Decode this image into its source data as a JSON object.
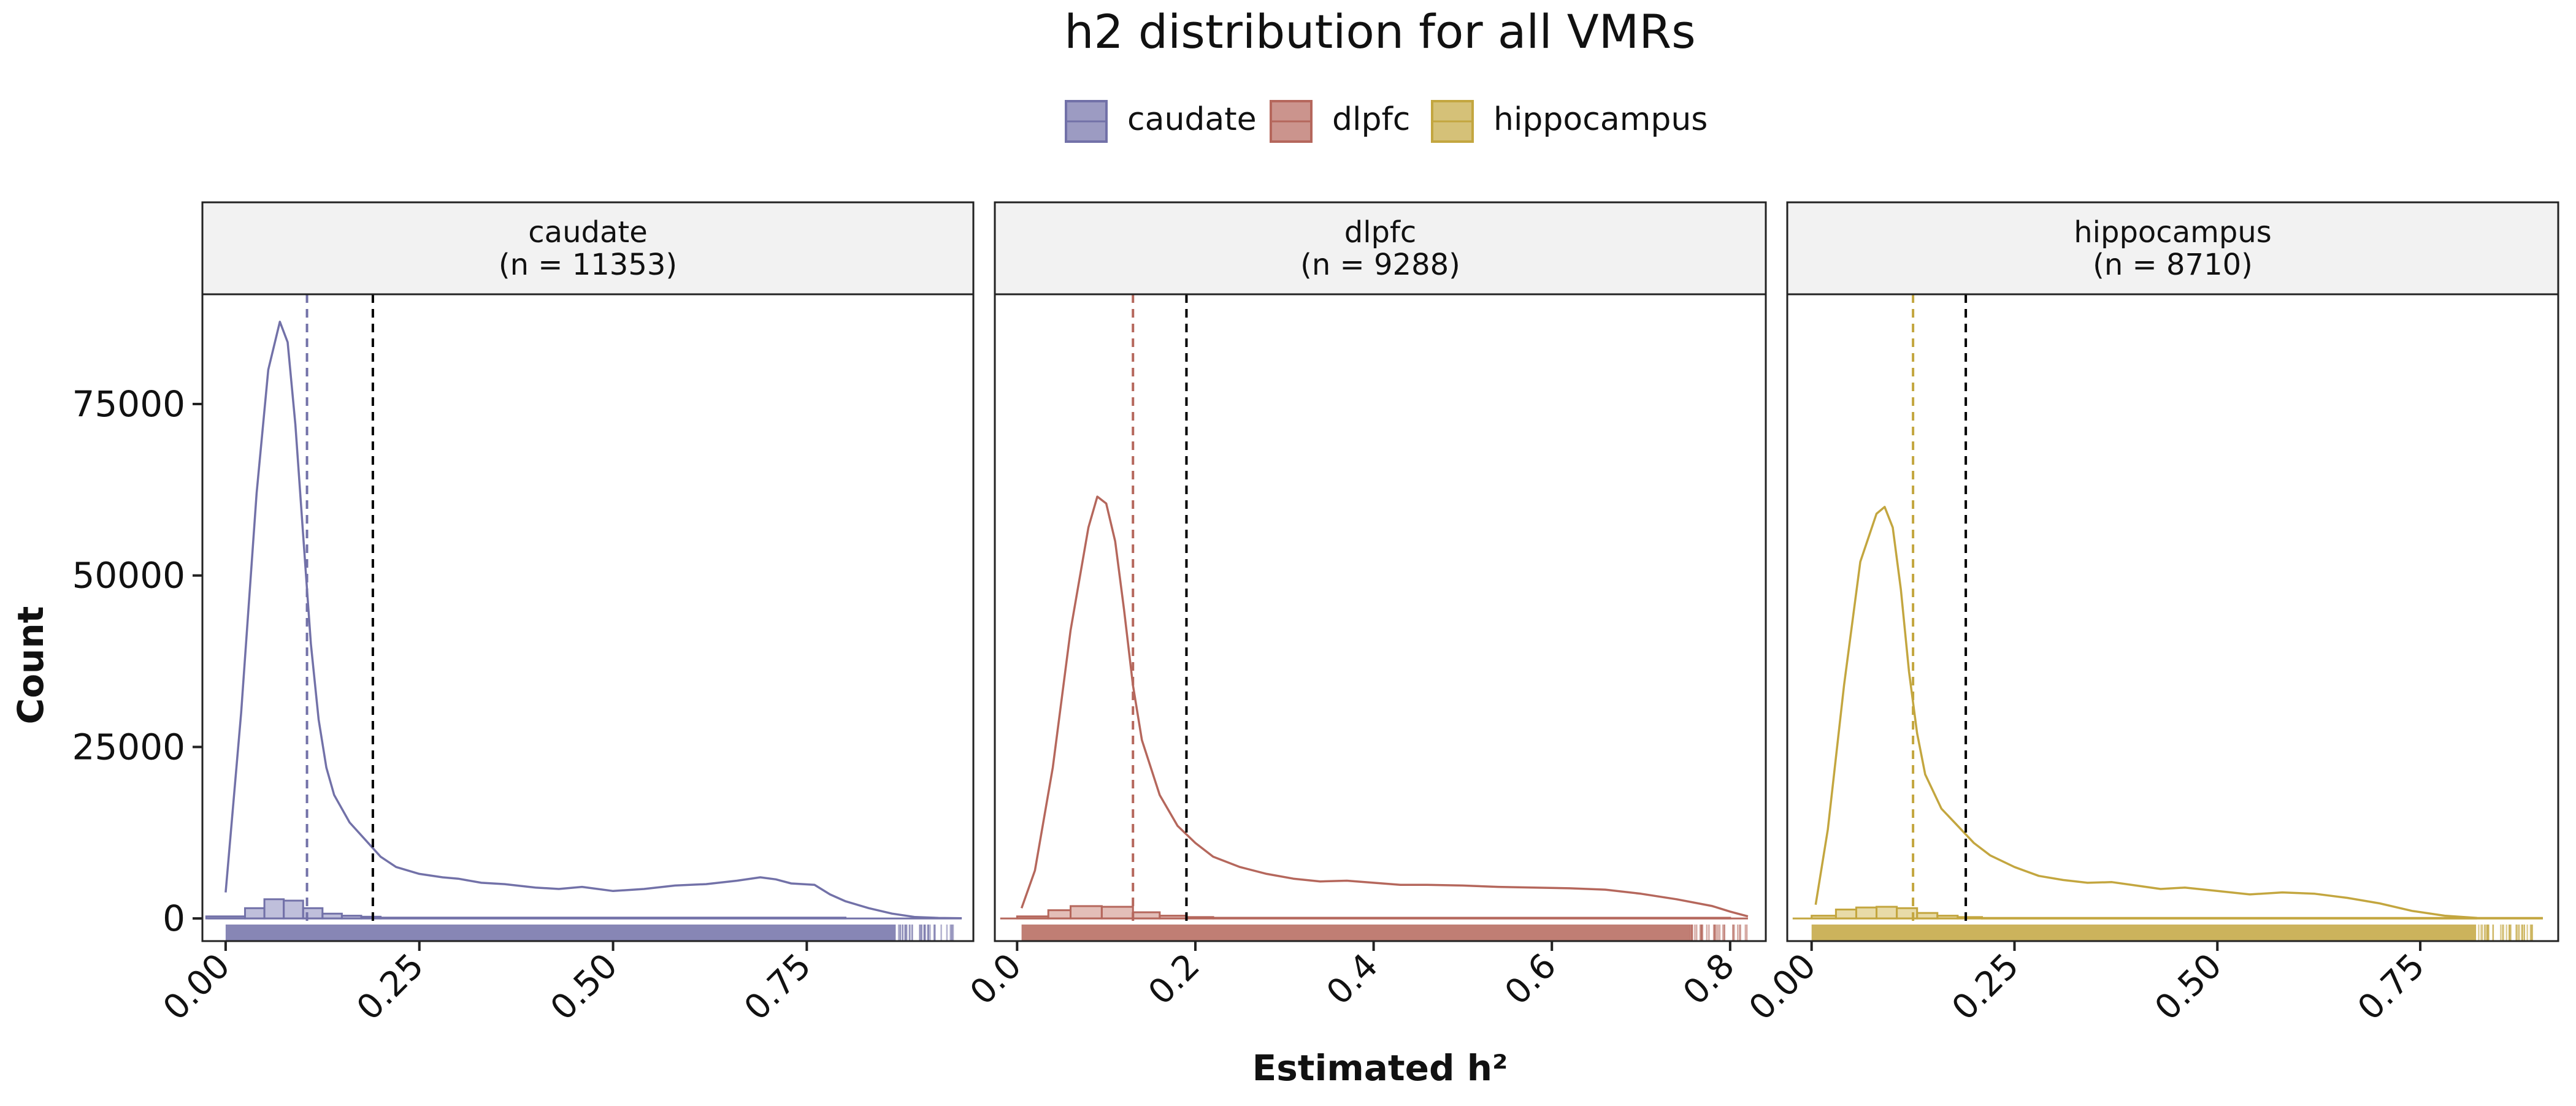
{
  "chart_data": {
    "type": "area",
    "title": "h2 distribution for all VMRs",
    "xlabel": "Estimated h²",
    "ylabel": "Count",
    "ylim": [
      -3300,
      91000
    ],
    "yticks": [
      0,
      25000,
      50000,
      75000
    ],
    "ytick_labels": [
      "0",
      "25000",
      "50000",
      "75000"
    ],
    "grid": false,
    "legend": {
      "placement": "top",
      "entries": [
        {
          "label": "caudate",
          "color": "#7271a8"
        },
        {
          "label": "dlpfc",
          "color": "#b5675c"
        },
        {
          "label": "hippocampus",
          "color": "#c3a63f"
        }
      ]
    },
    "reference_line": {
      "x": 0.19,
      "color": "#000000"
    },
    "panels": [
      {
        "name": "caudate",
        "strip_label": "caudate",
        "strip_n": "(n = 11353)",
        "color": "#7271a8",
        "fill": "#9d9cc8",
        "xlim": [
          -0.03,
          0.965
        ],
        "xticks": [
          0,
          0.25,
          0.5,
          0.75
        ],
        "xtick_labels": [
          "0.00",
          "0.25",
          "0.50",
          "0.75"
        ],
        "median_line": 0.105,
        "density_curve": {
          "x": [
            0.0,
            0.02,
            0.04,
            0.055,
            0.07,
            0.08,
            0.09,
            0.1,
            0.11,
            0.12,
            0.13,
            0.14,
            0.16,
            0.18,
            0.2,
            0.22,
            0.25,
            0.28,
            0.3,
            0.33,
            0.36,
            0.4,
            0.43,
            0.46,
            0.5,
            0.54,
            0.58,
            0.62,
            0.66,
            0.69,
            0.71,
            0.73,
            0.76,
            0.78,
            0.8,
            0.83,
            0.86,
            0.89,
            0.92,
            0.95
          ],
          "y": [
            3800,
            30000,
            62000,
            80000,
            87000,
            84000,
            72000,
            56000,
            40000,
            29000,
            22000,
            18000,
            14000,
            11500,
            9000,
            7500,
            6500,
            6000,
            5800,
            5200,
            5000,
            4500,
            4300,
            4600,
            4000,
            4300,
            4800,
            5000,
            5500,
            6000,
            5700,
            5100,
            4900,
            3500,
            2500,
            1500,
            700,
            200,
            80,
            30
          ]
        },
        "histogram": {
          "bin_edges": [
            -0.025,
            0.025,
            0.05,
            0.075,
            0.1,
            0.125,
            0.15,
            0.175,
            0.2,
            0.8
          ],
          "counts": [
            300,
            1500,
            2800,
            2600,
            1500,
            700,
            400,
            250,
            120
          ]
        },
        "rug_range": [
          0.0,
          0.94
        ]
      },
      {
        "name": "dlpfc",
        "strip_label": "dlpfc",
        "strip_n": "(n = 9288)",
        "color": "#b5675c",
        "fill": "#d49b92",
        "xlim": [
          -0.025,
          0.84
        ],
        "xticks": [
          0,
          0.2,
          0.4,
          0.6,
          0.8
        ],
        "xtick_labels": [
          "0.0",
          "0.2",
          "0.4",
          "0.6",
          "0.8"
        ],
        "median_line": 0.13,
        "density_curve": {
          "x": [
            0.005,
            0.02,
            0.04,
            0.06,
            0.08,
            0.09,
            0.1,
            0.11,
            0.12,
            0.13,
            0.14,
            0.16,
            0.18,
            0.2,
            0.22,
            0.25,
            0.28,
            0.31,
            0.34,
            0.37,
            0.4,
            0.43,
            0.46,
            0.5,
            0.54,
            0.58,
            0.62,
            0.66,
            0.7,
            0.74,
            0.78,
            0.8,
            0.82
          ],
          "y": [
            1500,
            7000,
            22000,
            42000,
            57000,
            61500,
            60500,
            55000,
            45000,
            34000,
            26000,
            18000,
            13500,
            11000,
            9000,
            7500,
            6500,
            5800,
            5400,
            5500,
            5200,
            4900,
            4900,
            4800,
            4600,
            4500,
            4400,
            4200,
            3600,
            2800,
            1800,
            1000,
            300
          ]
        },
        "histogram": {
          "bin_edges": [
            0.0,
            0.035,
            0.06,
            0.095,
            0.13,
            0.16,
            0.19,
            0.22,
            0.8
          ],
          "counts": [
            300,
            1200,
            1800,
            1700,
            900,
            400,
            200,
            100
          ]
        },
        "rug_range": [
          0.005,
          0.82
        ]
      },
      {
        "name": "hippocampus",
        "strip_label": "hippocampus",
        "strip_n": "(n = 8710)",
        "color": "#c3a63f",
        "fill": "#dcc77a",
        "xlim": [
          -0.03,
          0.92
        ],
        "xticks": [
          0,
          0.25,
          0.5,
          0.75
        ],
        "xtick_labels": [
          "0.00",
          "0.25",
          "0.50",
          "0.75"
        ],
        "median_line": 0.125,
        "density_curve": {
          "x": [
            0.005,
            0.02,
            0.04,
            0.06,
            0.08,
            0.09,
            0.1,
            0.11,
            0.12,
            0.13,
            0.14,
            0.16,
            0.18,
            0.2,
            0.22,
            0.25,
            0.28,
            0.31,
            0.34,
            0.37,
            0.4,
            0.43,
            0.46,
            0.5,
            0.54,
            0.58,
            0.62,
            0.66,
            0.7,
            0.74,
            0.78,
            0.82
          ],
          "y": [
            2000,
            13000,
            34000,
            52000,
            59000,
            60000,
            57000,
            48000,
            36000,
            27000,
            21000,
            16000,
            13500,
            11000,
            9200,
            7500,
            6200,
            5600,
            5200,
            5300,
            4800,
            4300,
            4500,
            4000,
            3500,
            3800,
            3600,
            3000,
            2200,
            1100,
            400,
            80
          ]
        },
        "histogram": {
          "bin_edges": [
            0.0,
            0.03,
            0.055,
            0.08,
            0.105,
            0.13,
            0.155,
            0.18,
            0.21,
            0.9
          ],
          "counts": [
            400,
            1300,
            1600,
            1700,
            1500,
            800,
            400,
            200,
            80
          ]
        },
        "rug_range": [
          0.0,
          0.89
        ]
      }
    ]
  }
}
